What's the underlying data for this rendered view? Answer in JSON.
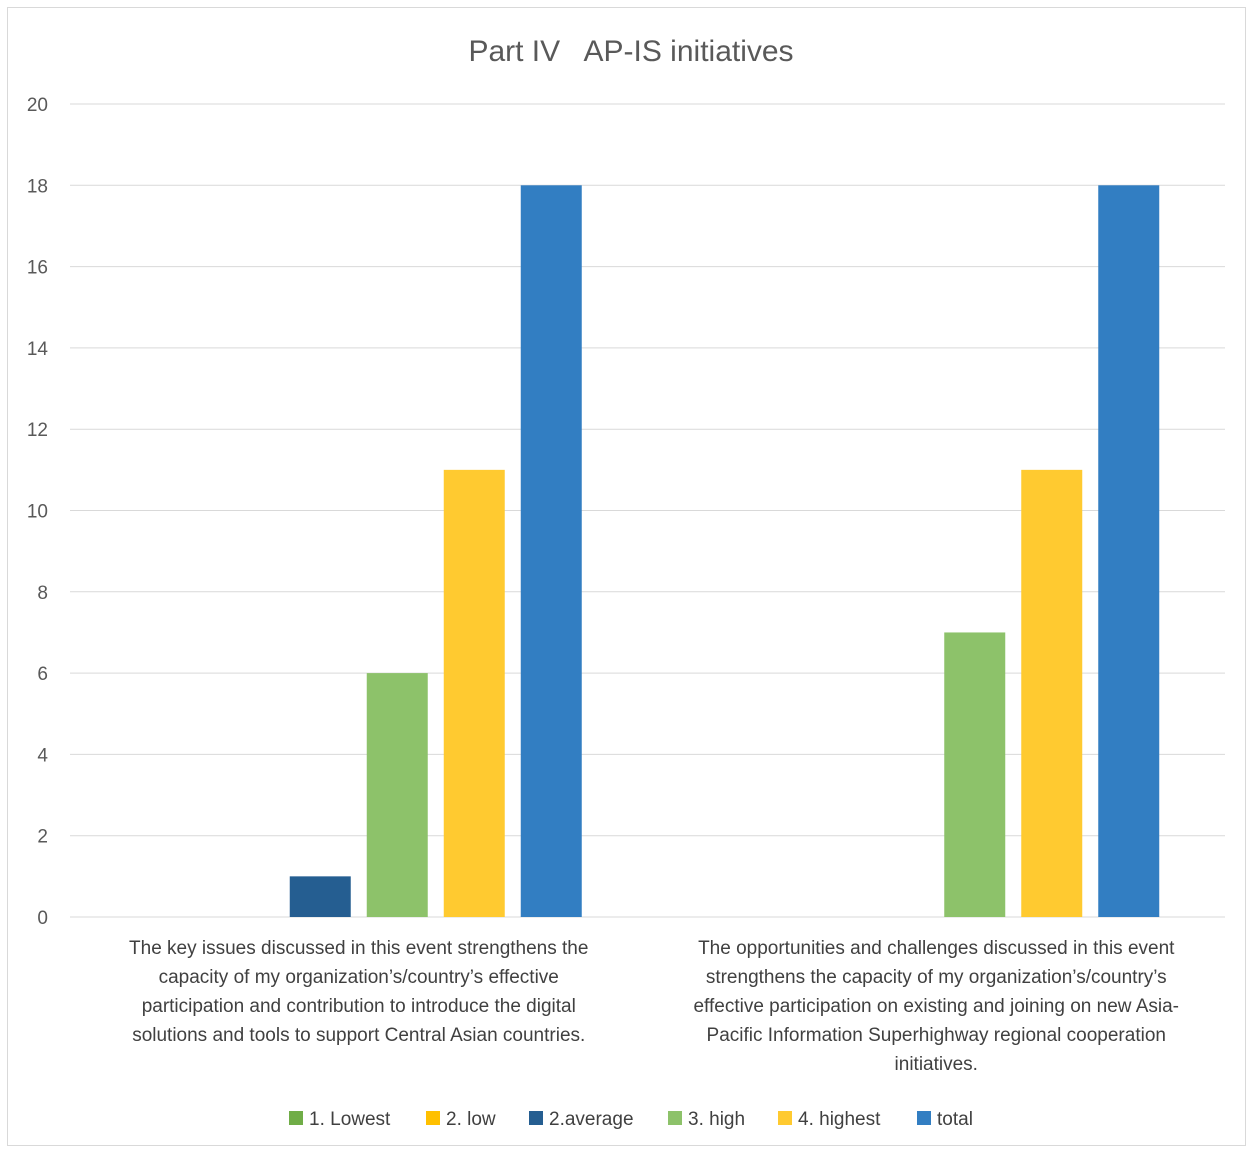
{
  "chart_data": {
    "type": "bar",
    "title": "Part IV   AP-IS initiatives",
    "xlabel": "",
    "ylabel": "",
    "ylim": [
      0,
      20
    ],
    "yticks": [
      0,
      2,
      4,
      6,
      8,
      10,
      12,
      14,
      16,
      18,
      20
    ],
    "grid": true,
    "legend_position": "bottom",
    "categories": [
      "The key issues discussed in this event strengthens the capacity of my organization’s/country’s effective participation and contribution to introduce the digital solutions and tools to support Central Asian countries.",
      "The opportunities and challenges discussed in this event strengthens the capacity of my organization’s/country’s effective participation on existing and joining on new Asia-Pacific Information Superhighway regional cooperation initiatives."
    ],
    "category_lines": [
      [
        "The key issues discussed in this event strengthens the",
        "capacity of my organization’s/country’s effective",
        "participation and contribution to introduce the digital",
        "solutions and tools to support Central Asian countries."
      ],
      [
        "The opportunities and challenges discussed in this event",
        "strengthens the capacity of my organization’s/country’s",
        "effective participation on existing and joining on new Asia-",
        "Pacific Information Superhighway regional cooperation",
        "initiatives."
      ]
    ],
    "series": [
      {
        "name": "1. Lowest",
        "color": "#70ad47",
        "values": [
          0,
          0
        ]
      },
      {
        "name": "2. low",
        "color": "#ffc000",
        "values": [
          0,
          0
        ]
      },
      {
        "name": "2.average",
        "color": "#255e91",
        "values": [
          1,
          0
        ]
      },
      {
        "name": "3. high",
        "color": "#8dc26a",
        "values": [
          6,
          7
        ]
      },
      {
        "name": "4. highest",
        "color": "#ffca30",
        "values": [
          11,
          11
        ]
      },
      {
        "name": "total",
        "color": "#327ec2",
        "values": [
          18,
          18
        ]
      }
    ]
  }
}
